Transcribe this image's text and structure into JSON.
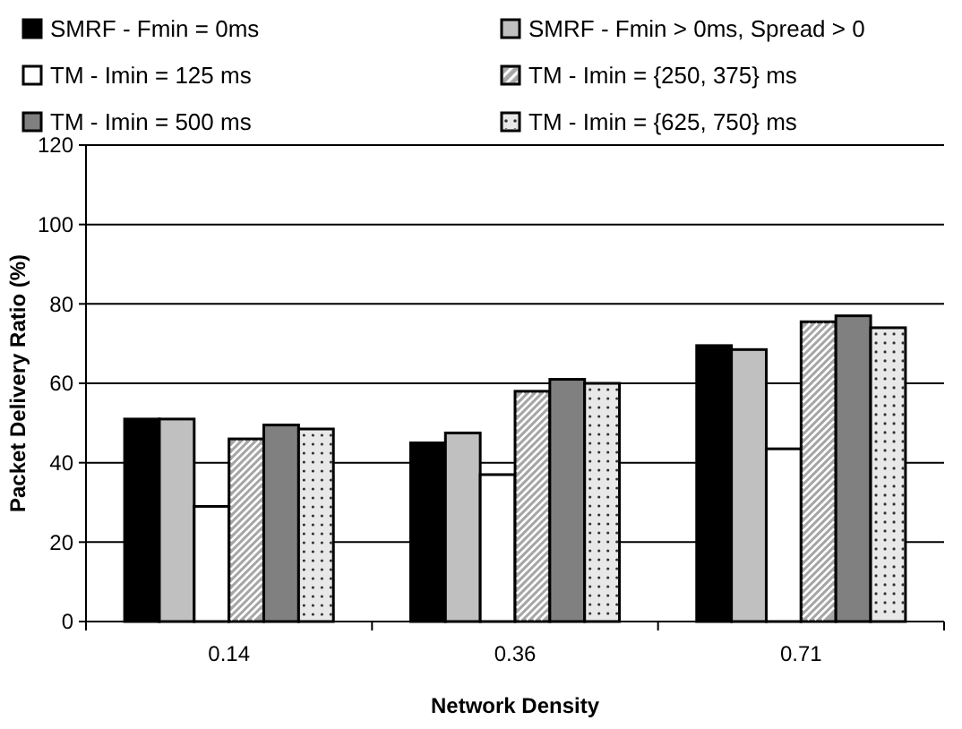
{
  "chart_data": {
    "type": "bar",
    "xlabel": "Network Density",
    "ylabel": "Packet Delivery Ratio (%)",
    "categories": [
      "0.14",
      "0.36",
      "0.71"
    ],
    "series": [
      {
        "name": "SMRF - Fmin = 0ms",
        "color": "#000000",
        "values": [
          51,
          45,
          69.5
        ]
      },
      {
        "name": "SMRF - Fmin > 0ms, Spread > 0",
        "color": "#c0c0c0",
        "values": [
          51,
          47.5,
          68.5
        ]
      },
      {
        "name": "TM - Imin = 125 ms",
        "color": "#ffffff",
        "values": [
          29,
          37,
          43.5
        ]
      },
      {
        "name": "TM - Imin = {250, 375} ms",
        "color": "#a6a6a6",
        "values": [
          46,
          58,
          75.5
        ]
      },
      {
        "name": "TM - Imin = 500 ms",
        "color": "#808080",
        "values": [
          49.5,
          61,
          77
        ]
      },
      {
        "name": "TM - Imin = {625, 750} ms",
        "color": "#e8e8e8",
        "values": [
          48.5,
          60,
          74
        ]
      }
    ],
    "ylim": [
      0,
      120
    ],
    "yticks": [
      0,
      20,
      40,
      60,
      80,
      100,
      120
    ],
    "grid": "y",
    "legend": "top"
  }
}
